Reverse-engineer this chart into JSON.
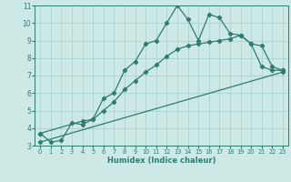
{
  "line1_x": [
    0,
    1,
    2,
    3,
    4,
    5,
    6,
    7,
    8,
    9,
    10,
    11,
    12,
    13,
    14,
    15,
    16,
    17,
    18,
    19,
    20,
    21,
    22,
    23
  ],
  "line1_y": [
    3.7,
    3.2,
    3.3,
    4.3,
    4.2,
    4.5,
    5.7,
    6.0,
    7.3,
    7.8,
    8.8,
    9.0,
    10.0,
    11.0,
    10.2,
    9.0,
    10.5,
    10.3,
    9.4,
    9.3,
    8.8,
    7.5,
    7.3,
    7.3
  ],
  "line2_x": [
    0,
    4,
    5,
    6,
    7,
    8,
    9,
    10,
    11,
    12,
    13,
    14,
    15,
    16,
    17,
    18,
    19,
    20,
    21,
    22,
    23
  ],
  "line2_y": [
    3.7,
    4.4,
    4.5,
    5.0,
    5.5,
    6.2,
    6.7,
    7.2,
    7.6,
    8.1,
    8.5,
    8.7,
    8.8,
    8.9,
    9.0,
    9.1,
    9.3,
    8.8,
    8.7,
    7.5,
    7.3
  ],
  "line3_x": [
    0,
    23
  ],
  "line3_y": [
    3.2,
    7.2
  ],
  "color": "#2e7d6e",
  "bg_color": "#cce9e5",
  "grid_color": "#aad4cf",
  "xlabel": "Humidex (Indice chaleur)",
  "xlim": [
    -0.5,
    23.5
  ],
  "ylim": [
    3,
    11
  ],
  "yticks": [
    3,
    4,
    5,
    6,
    7,
    8,
    9,
    10,
    11
  ],
  "xticks": [
    0,
    1,
    2,
    3,
    4,
    5,
    6,
    7,
    8,
    9,
    10,
    11,
    12,
    13,
    14,
    15,
    16,
    17,
    18,
    19,
    20,
    21,
    22,
    23
  ]
}
